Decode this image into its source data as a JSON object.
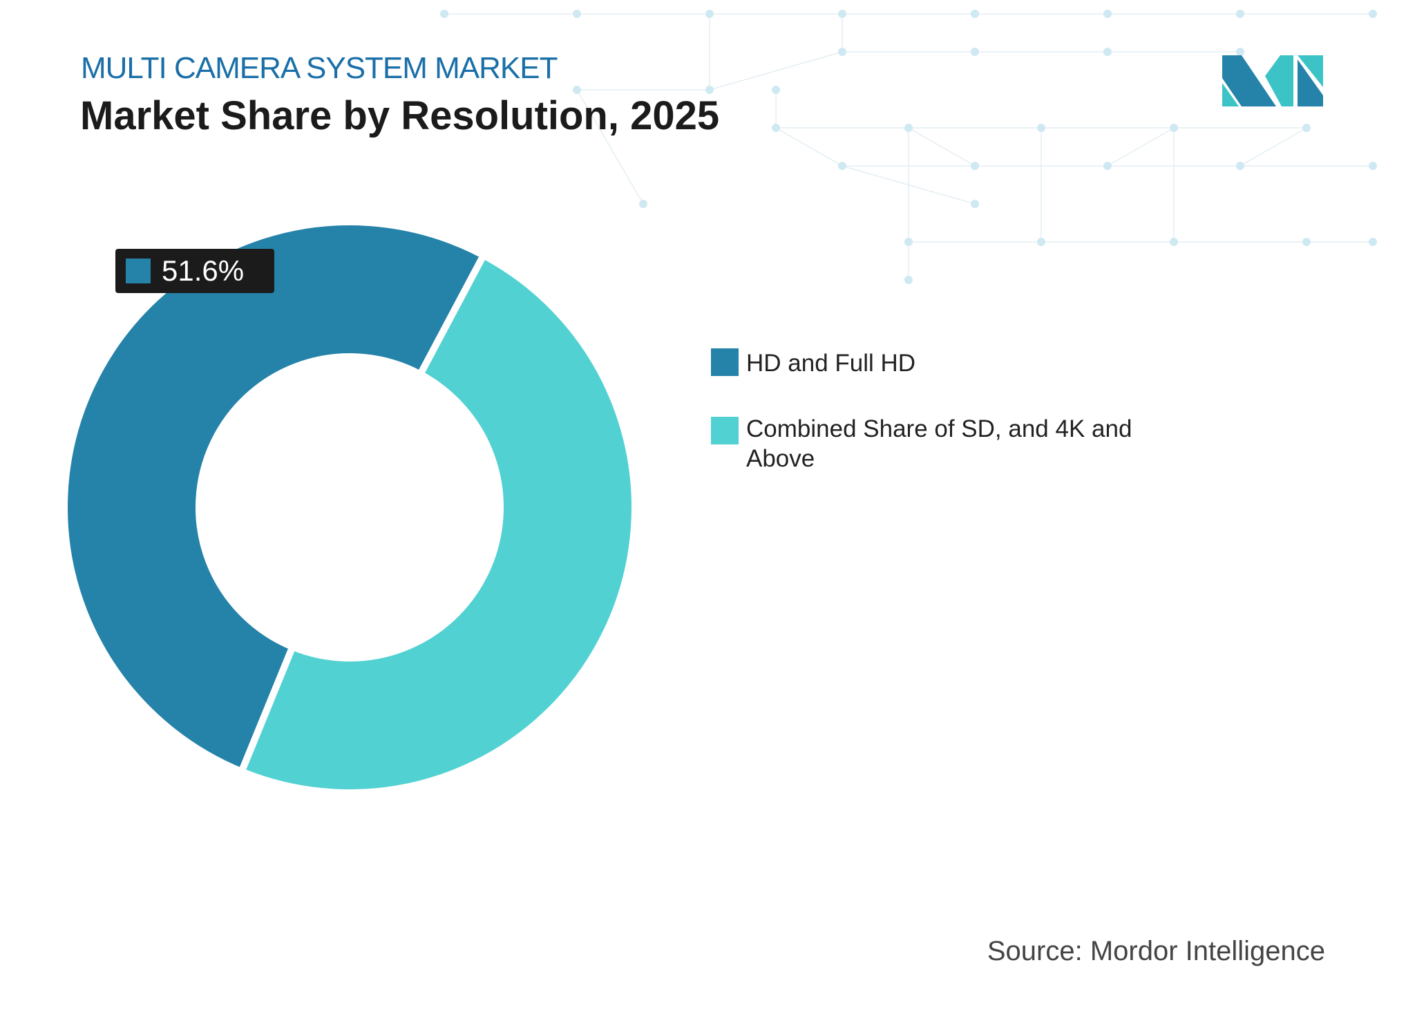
{
  "header": {
    "eyebrow": "MULTI CAMERA SYSTEM MARKET",
    "title": "Market Share by Resolution, 2025"
  },
  "logo": {
    "colors": {
      "dark": "#2582a9",
      "light": "#3cc3c6"
    }
  },
  "chart_data": {
    "type": "pie",
    "donut": true,
    "categories": [
      "HD and Full HD",
      "Combined Share of SD, and 4K and Above"
    ],
    "values": [
      51.6,
      48.4
    ],
    "colors": [
      "#2582a9",
      "#52d1d3"
    ],
    "data_labels": [
      {
        "category": "HD and Full HD",
        "text": "51.6%"
      }
    ],
    "legend_position": "right"
  },
  "source": "Source: Mordor Intelligence"
}
